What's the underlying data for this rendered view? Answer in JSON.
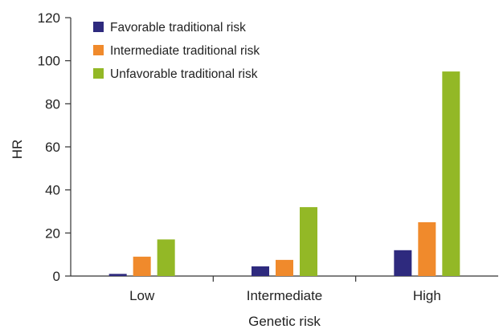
{
  "chart_data": {
    "type": "bar",
    "title": "",
    "xlabel": "Genetic risk",
    "ylabel": "HR",
    "categories": [
      "Low",
      "Intermediate",
      "High"
    ],
    "series": [
      {
        "name": "Favorable traditional risk",
        "color": "#2e2a7e",
        "values": [
          1,
          4.5,
          12
        ]
      },
      {
        "name": "Intermediate traditional risk",
        "color": "#f08a2c",
        "values": [
          9,
          7.5,
          25
        ]
      },
      {
        "name": "Unfavorable traditional risk",
        "color": "#93b826",
        "values": [
          17,
          32,
          95
        ]
      }
    ],
    "ylim": [
      0,
      120
    ],
    "yticks": [
      0,
      20,
      40,
      60,
      80,
      100,
      120
    ],
    "grid": false,
    "legend_position": "top-left"
  }
}
